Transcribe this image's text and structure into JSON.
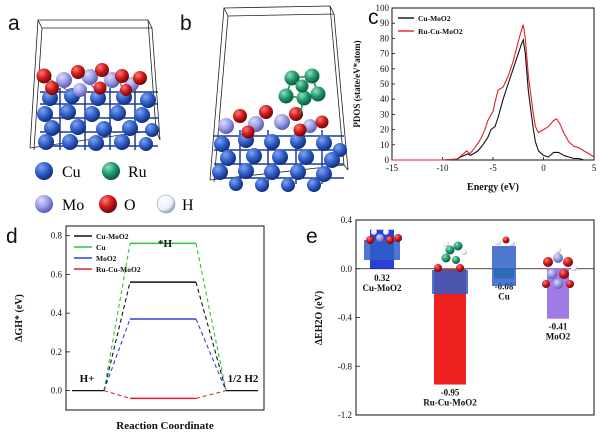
{
  "panels": {
    "a": {
      "label": "a"
    },
    "b": {
      "label": "b"
    },
    "c": {
      "label": "c"
    },
    "d": {
      "label": "d"
    },
    "e": {
      "label": "e"
    }
  },
  "legend_ab": {
    "items": [
      {
        "symbol": "Cu",
        "color": "#2f5fc8"
      },
      {
        "symbol": "Ru",
        "color": "#1f9a6a"
      },
      {
        "symbol": "Mo",
        "color": "#9a9ce6"
      },
      {
        "symbol": "O",
        "color": "#a51212"
      },
      {
        "symbol": "H",
        "color": "#ecf0fa"
      }
    ]
  },
  "chart_data": [
    {
      "panel": "c",
      "type": "line",
      "xlabel": "Energy (eV)",
      "ylabel": "PDOS (state/eV*atom)",
      "xlim": [
        -15,
        5
      ],
      "ylim": [
        0,
        100
      ],
      "xticks": [
        -15,
        -10,
        -5,
        0,
        5
      ],
      "yticks": [
        0,
        10,
        20,
        30,
        40,
        50,
        60,
        70,
        80,
        90,
        100
      ],
      "legend_position": "top-left",
      "series": [
        {
          "name": "Cu-MoO2",
          "color": "#111111",
          "x": [
            -15,
            -10,
            -8.6,
            -8.2,
            -7.5,
            -7.2,
            -6.5,
            -6.0,
            -5.5,
            -5.2,
            -4.8,
            -4.5,
            -4.0,
            -3.5,
            -3.0,
            -2.5,
            -2.2,
            -2.0,
            -1.8,
            -1.5,
            -1.2,
            -1.0,
            -0.8,
            -0.5,
            0.0,
            0.5,
            1.0,
            1.5,
            2.0,
            2.5,
            3.0,
            3.5,
            4.0,
            5.0
          ],
          "y": [
            0,
            0,
            0.5,
            2,
            4,
            3,
            6,
            10,
            15,
            20,
            22,
            28,
            40,
            50,
            60,
            70,
            76,
            79,
            70,
            45,
            30,
            20,
            12,
            6,
            3,
            2,
            5,
            5,
            3,
            2,
            1,
            1,
            0,
            0
          ]
        },
        {
          "name": "Ru-Cu-MoO2",
          "color": "#e0202c",
          "x": [
            -15,
            -10,
            -8.6,
            -8.2,
            -7.6,
            -7.3,
            -6.8,
            -6.2,
            -5.8,
            -5.5,
            -5.0,
            -4.8,
            -4.5,
            -4.0,
            -3.5,
            -3.0,
            -2.5,
            -2.2,
            -2.0,
            -1.8,
            -1.5,
            -1.2,
            -1.0,
            -0.8,
            -0.5,
            0.0,
            0.5,
            1.0,
            1.3,
            1.6,
            2.0,
            2.5,
            3.0,
            3.5,
            4.0,
            4.5,
            5.0
          ],
          "y": [
            0,
            0,
            0.5,
            2.5,
            6,
            4,
            8,
            14,
            20,
            26,
            32,
            38,
            46,
            48,
            55,
            65,
            78,
            85,
            89,
            80,
            55,
            40,
            30,
            22,
            18,
            20,
            22,
            26,
            27,
            24,
            18,
            12,
            9,
            8,
            6,
            4,
            2
          ]
        }
      ]
    },
    {
      "panel": "d",
      "type": "line",
      "xlabel": "Reaction Coordinate",
      "ylabel": "ΔGH* (eV)",
      "ylim": [
        -0.1,
        0.85
      ],
      "yticks": [
        0.0,
        0.2,
        0.4,
        0.6,
        0.8
      ],
      "legend_position": "top-left",
      "annotations": {
        "initial": "H+",
        "middle": "*H",
        "final": "1/2 H2"
      },
      "series": [
        {
          "name": "Cu-MoO2",
          "color": "#111111",
          "value": 0.56
        },
        {
          "name": "Cu",
          "color": "#2fc43a",
          "value": 0.76
        },
        {
          "name": "MoO2",
          "color": "#2f41e0",
          "value": 0.37
        },
        {
          "name": "Ru-Cu-MoO2",
          "color": "#e0202c",
          "value": -0.04
        }
      ]
    },
    {
      "panel": "e",
      "type": "bar",
      "ylabel": "ΔEH2O (eV)",
      "ylim": [
        -1.2,
        0.4
      ],
      "yticks": [
        -1.2,
        -0.8,
        -0.4,
        0.0,
        0.4
      ],
      "categories": [
        "Cu-MoO2",
        "Ru-Cu-MoO2",
        "Cu",
        "MoO2"
      ],
      "values": [
        0.32,
        -0.95,
        -0.08,
        -0.41
      ],
      "value_labels": [
        "0.32",
        "-0.95",
        "-0.08",
        "-0.41"
      ],
      "colors": [
        "#2a3fd6",
        "#ee2020",
        "#22b05a",
        "#a07be8"
      ]
    }
  ]
}
